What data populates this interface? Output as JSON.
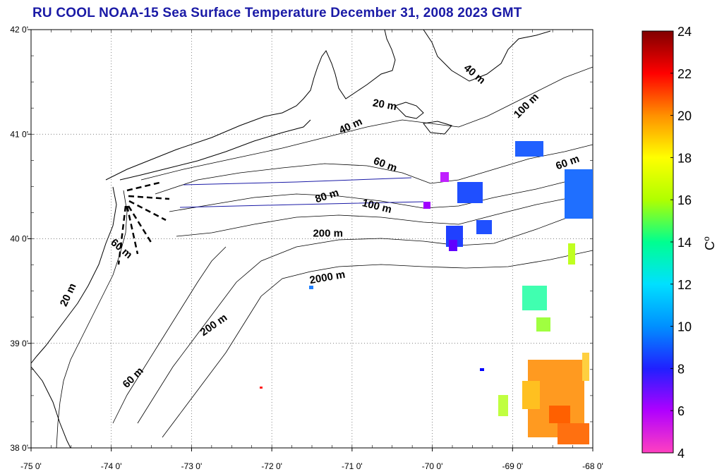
{
  "title": "RU COOL  NOAA-15 Sea Surface Temperature December 31, 2008 2023 GMT",
  "map": {
    "lon_range": [
      -75,
      -68
    ],
    "lat_range": [
      38,
      42
    ],
    "lon_ticks": [
      "-75 0'",
      "-74 0'",
      "-73 0'",
      "-72 0'",
      "-71 0'",
      "-70 0'",
      "-69 0'",
      "-68 0'"
    ],
    "lat_ticks": [
      "38 0'",
      "39 0'",
      "40 0'",
      "41 0'",
      "42 0'"
    ],
    "grid": "dotted",
    "depth_labels": [
      {
        "text": "20 m",
        "lon": -70.6,
        "lat": 41.25,
        "rot": 10
      },
      {
        "text": "40 m",
        "lon": -71.0,
        "lat": 41.05,
        "rot": -25
      },
      {
        "text": "40 m",
        "lon": -69.5,
        "lat": 41.55,
        "rot": 40
      },
      {
        "text": "100 m",
        "lon": -68.8,
        "lat": 41.25,
        "rot": -45
      },
      {
        "text": "60 m",
        "lon": -70.6,
        "lat": 40.68,
        "rot": 20
      },
      {
        "text": "60 m",
        "lon": -68.3,
        "lat": 40.7,
        "rot": -20
      },
      {
        "text": "80 m",
        "lon": -71.3,
        "lat": 40.38,
        "rot": -18
      },
      {
        "text": "100 m",
        "lon": -70.7,
        "lat": 40.28,
        "rot": 14
      },
      {
        "text": "200 m",
        "lon": -71.3,
        "lat": 40.02,
        "rot": 0
      },
      {
        "text": "2000 m",
        "lon": -71.3,
        "lat": 39.6,
        "rot": -10
      },
      {
        "text": "60 m",
        "lon": -73.9,
        "lat": 39.88,
        "rot": 40
      },
      {
        "text": "20 m",
        "lon": -74.5,
        "lat": 39.45,
        "rot": -65
      },
      {
        "text": "200 m",
        "lon": -72.7,
        "lat": 39.15,
        "rot": -35
      },
      {
        "text": "60 m",
        "lon": -73.7,
        "lat": 38.65,
        "rot": -45
      }
    ]
  },
  "colorbar": {
    "min": 4,
    "max": 24,
    "ticks": [
      "24",
      "22",
      "20",
      "18",
      "16",
      "14",
      "12",
      "10",
      "8",
      "6",
      "4"
    ],
    "unit": "C",
    "colors": [
      "#ff40c0",
      "#b000ff",
      "#2020ff",
      "#0090ff",
      "#00e0ff",
      "#00ff90",
      "#b0ff00",
      "#ffff00",
      "#ff9000",
      "#ff0000",
      "#800000"
    ]
  }
}
